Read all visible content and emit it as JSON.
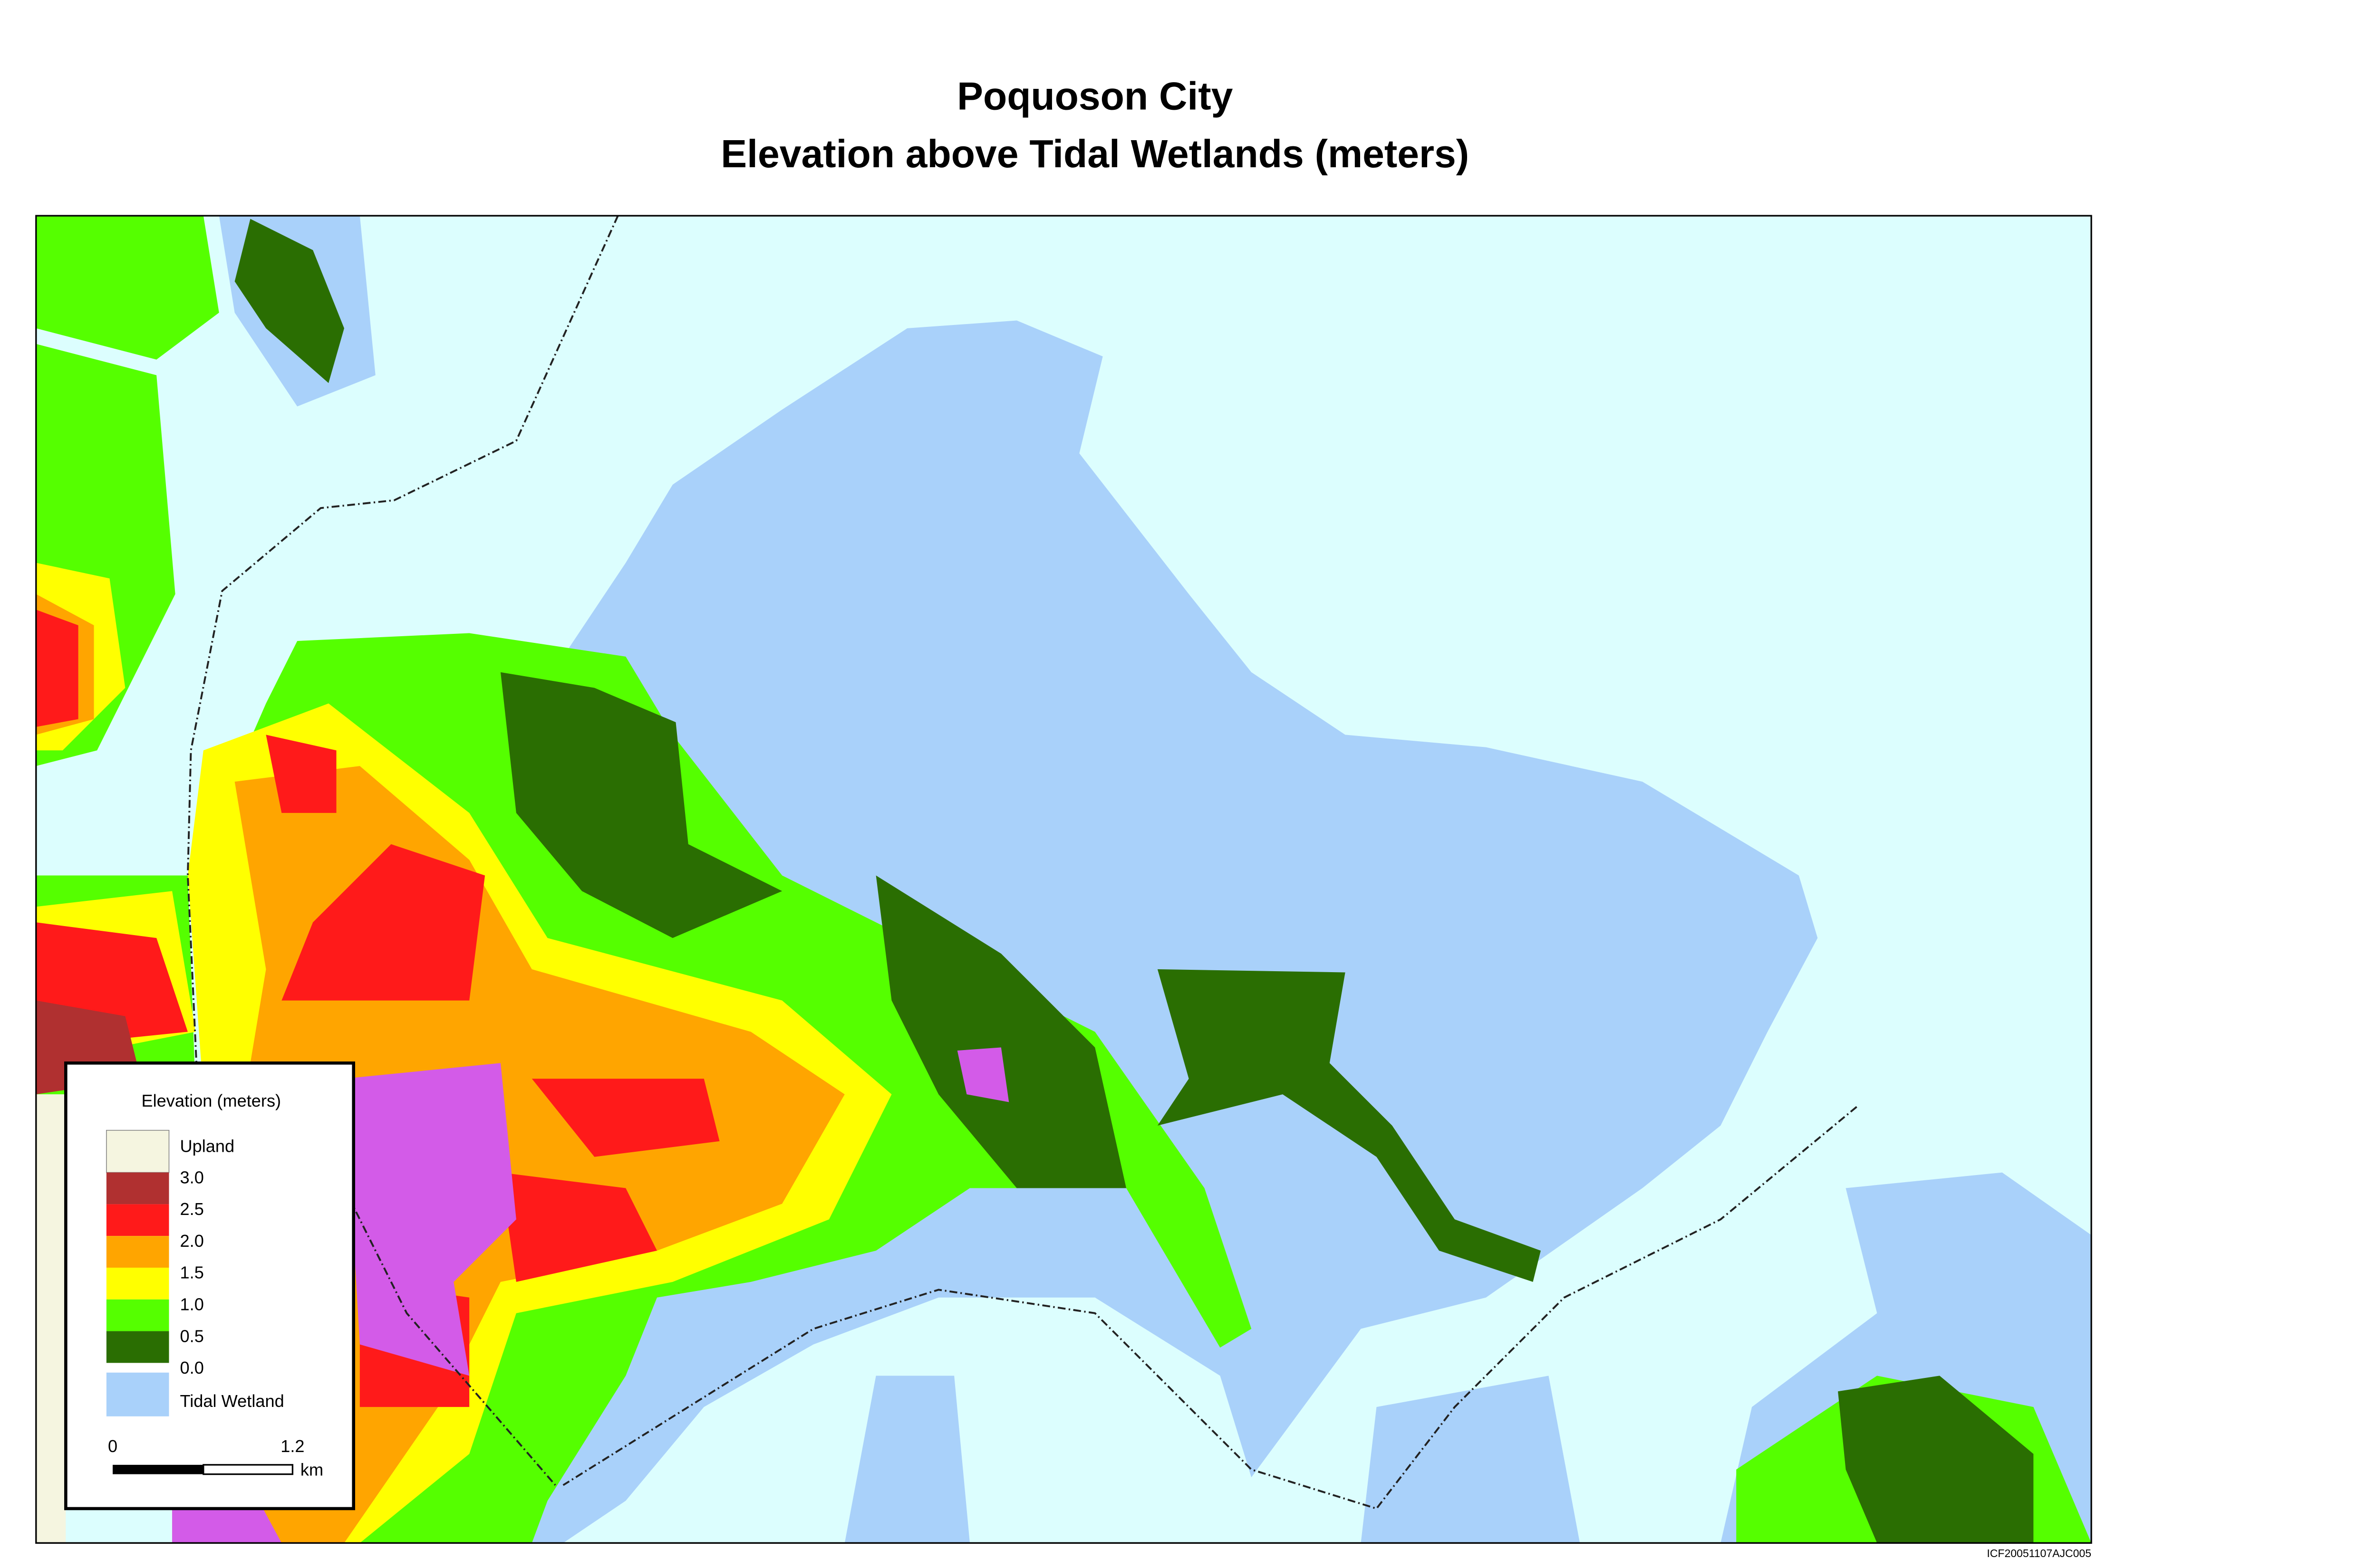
{
  "header": {
    "title": "Poquoson City",
    "subtitle": "Elevation above Tidal Wetlands (meters)"
  },
  "legend": {
    "title": "Elevation (meters)",
    "upland": {
      "label": "Upland",
      "color": "#f5f5e0"
    },
    "breaks": [
      "3.0",
      "2.5",
      "2.0",
      "1.5",
      "1.0",
      "0.5",
      "0.0"
    ],
    "class_colors": [
      "#b03030",
      "#ff1a1a",
      "#ffa500",
      "#ffff00",
      "#55ff00",
      "#2a6e02"
    ],
    "tidal_wetland": {
      "label": "Tidal Wetland",
      "color": "#a9d1fa"
    }
  },
  "scale_bar": {
    "start": "0",
    "end": "1.2",
    "unit": "km"
  },
  "credit": "ICF20051107AJC005"
}
